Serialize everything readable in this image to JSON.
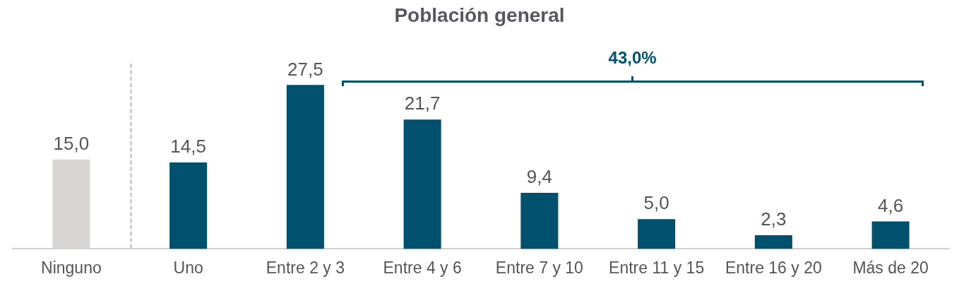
{
  "chart_data": {
    "type": "bar",
    "title": "Población general",
    "categories": [
      "Ninguno",
      "Uno",
      "Entre 2 y 3",
      "Entre 4 y 6",
      "Entre 7 y 10",
      "Entre 11 y 15",
      "Entre 16 y 20",
      "Más de 20"
    ],
    "values": [
      15.0,
      14.5,
      27.5,
      21.7,
      9.4,
      5.0,
      2.3,
      4.6
    ],
    "colors": [
      "#d9d6d6",
      "#00506e",
      "#00506e",
      "#00506e",
      "#00506e",
      "#00506e",
      "#00506e",
      "#00506e"
    ],
    "value_labels": [
      "15,0",
      "14,5",
      "27,5",
      "21,7",
      "9,4",
      "5,0",
      "2,3",
      "4,6"
    ],
    "relative": false,
    "grid": false,
    "legend": false,
    "annotations": [
      "43,0%"
    ]
  }
}
